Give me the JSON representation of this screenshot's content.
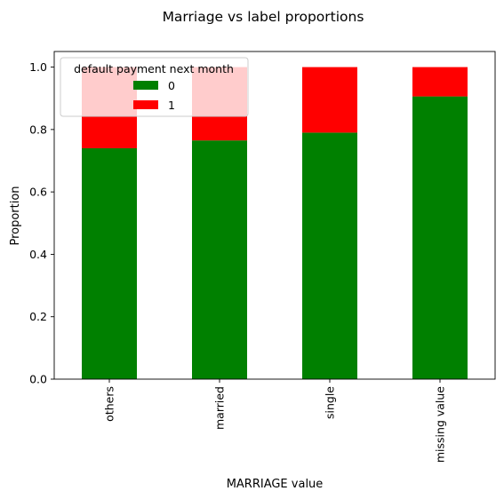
{
  "chart_data": {
    "type": "bar",
    "stacked": true,
    "title": "Marriage vs label proportions",
    "xlabel": "MARRIAGE value",
    "ylabel": "Proportion",
    "categories": [
      "others",
      "married",
      "single",
      "missing value"
    ],
    "series": [
      {
        "name": "0",
        "color": "#008000",
        "values": [
          0.74,
          0.765,
          0.79,
          0.906
        ]
      },
      {
        "name": "1",
        "color": "#ff0000",
        "values": [
          0.26,
          0.235,
          0.21,
          0.094
        ]
      }
    ],
    "ylim": [
      0,
      1.05
    ],
    "yticks": [
      "0.0",
      "0.2",
      "0.4",
      "0.6",
      "0.8",
      "1.0"
    ],
    "legend": {
      "title": "default payment next month",
      "placement": "top-left"
    },
    "grid": false
  }
}
